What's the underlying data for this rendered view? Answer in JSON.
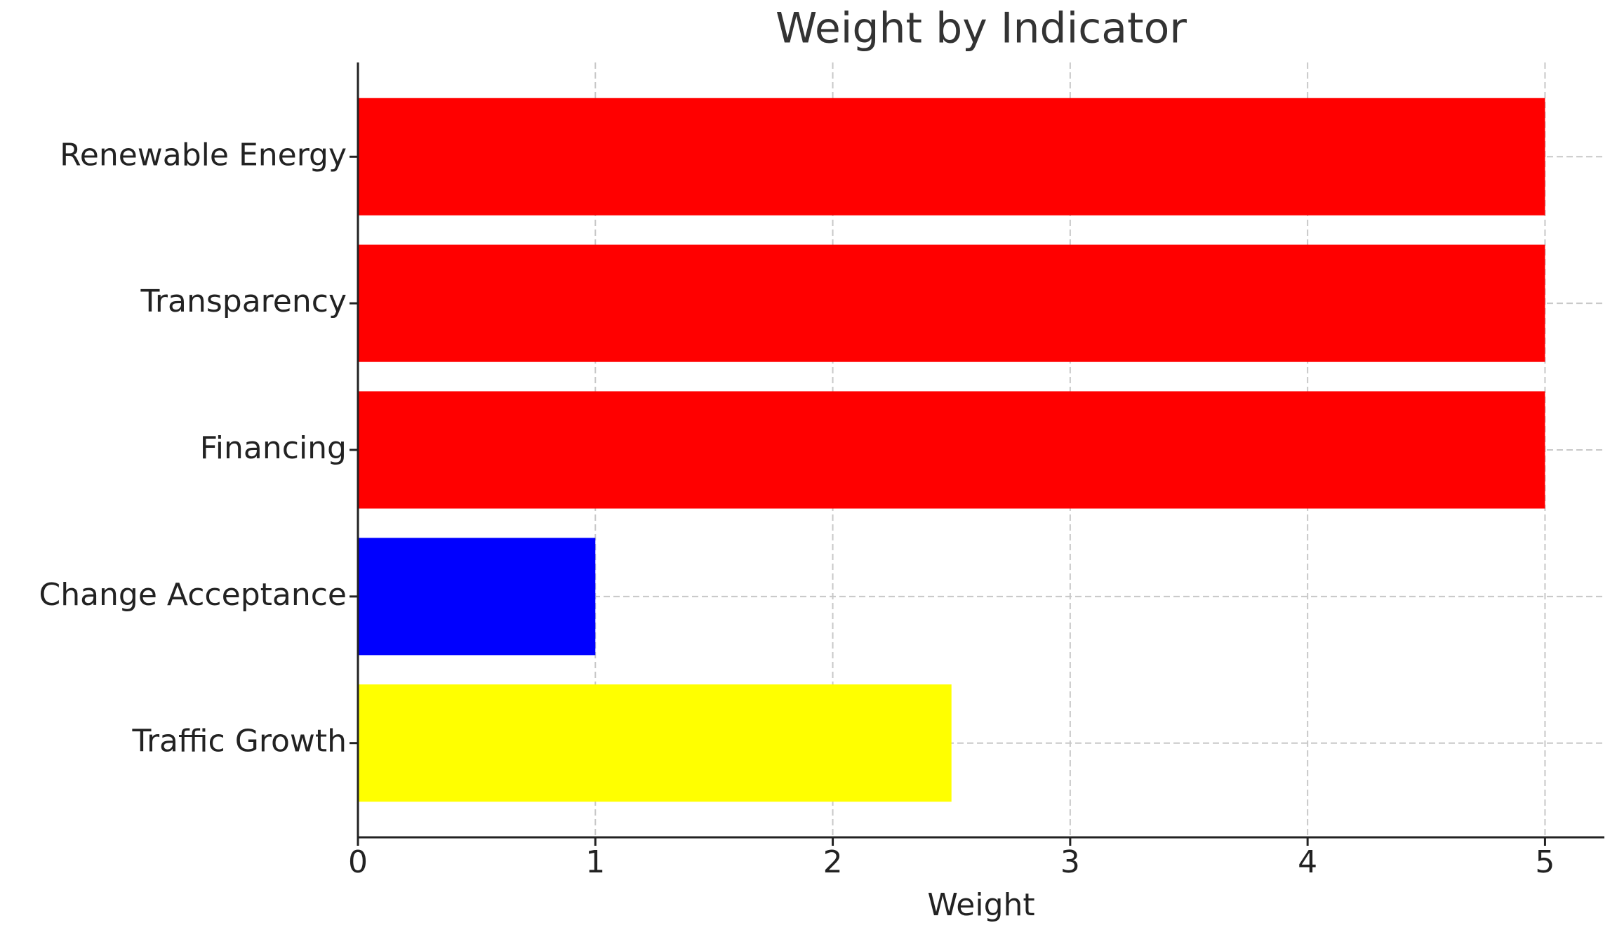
{
  "chart_data": {
    "type": "barh",
    "title": "Weight by Indicator",
    "xlabel": "Weight",
    "categories": [
      "Renewable Energy",
      "Transparency",
      "Financing",
      "Change Acceptance",
      "Traffic Growth"
    ],
    "values": [
      5,
      5,
      5,
      1,
      2.5
    ],
    "colors": [
      "#ff0000",
      "#ff0000",
      "#ff0000",
      "#0000ff",
      "#ffff00"
    ],
    "xlim": [
      0,
      5.25
    ],
    "xticks": [
      0,
      1,
      2,
      3,
      4,
      5
    ],
    "grid": true
  }
}
